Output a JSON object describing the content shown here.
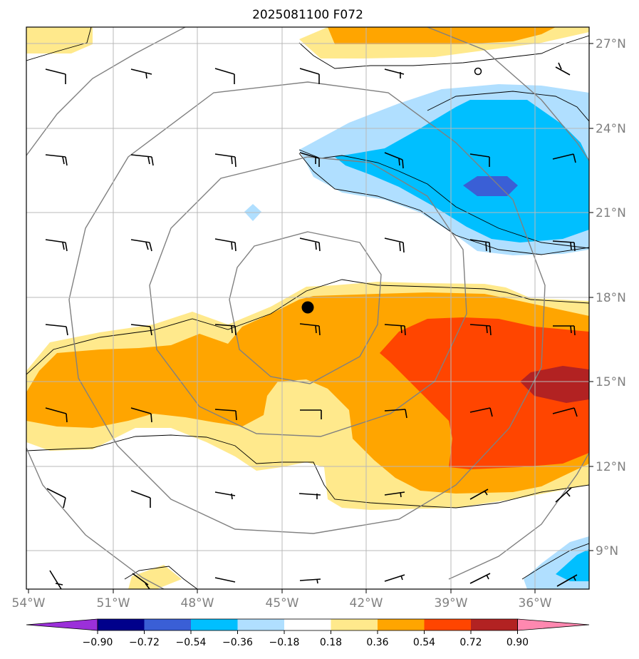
{
  "title": "2025081100 F072",
  "map": {
    "lon_range": [
      -54,
      -33.5
    ],
    "lat_range": [
      7.7,
      27.7
    ],
    "lat_ticks": [
      "27°N",
      "24°N",
      "21°N",
      "18°N",
      "15°N",
      "12°N",
      "9°N"
    ],
    "lon_ticks": [
      "54°W",
      "51°W",
      "48°W",
      "45°W",
      "42°W",
      "39°W",
      "36°W"
    ],
    "storm_center": {
      "lon": -44,
      "lat": 17.6
    },
    "gridlines": true
  },
  "colorbar": {
    "ticks": [
      "−0.90",
      "−0.72",
      "−0.54",
      "−0.36",
      "−0.18",
      "0.18",
      "0.36",
      "0.54",
      "0.72",
      "0.90"
    ],
    "colors": [
      "#9b30d9",
      "#00008b",
      "#3a5fd6",
      "#00bfff",
      "#b0dfff",
      "#ffffff",
      "#ffe98c",
      "#ffa500",
      "#ff4500",
      "#b22222",
      "#ff88b0"
    ],
    "extend": "both"
  },
  "icons": {
    "wind": "wind-barb-icon",
    "center": "storm-center-icon"
  }
}
